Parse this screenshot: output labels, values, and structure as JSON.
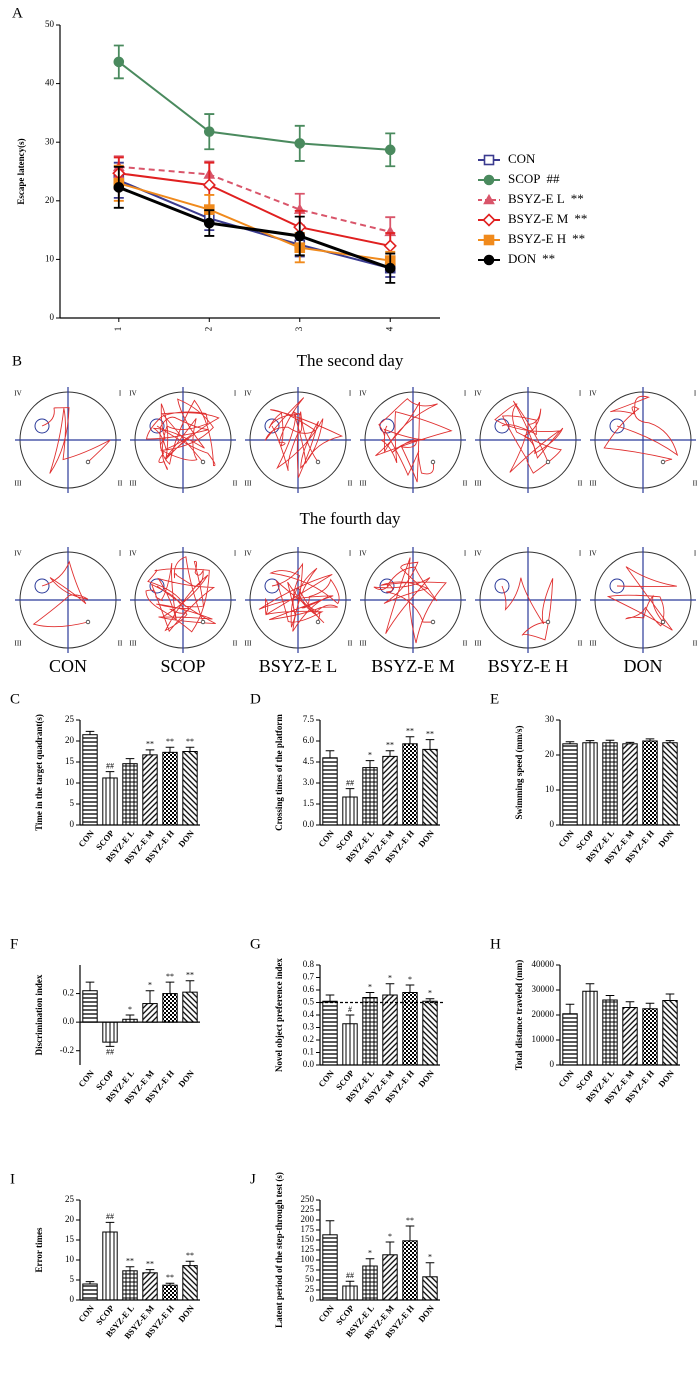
{
  "chart_data": [
    {
      "type": "line",
      "panel": "A",
      "y_label": "Escape latency(s)",
      "x": [
        1,
        2,
        3,
        4
      ],
      "xlim": [
        0.35,
        4.55
      ],
      "xticks": [
        1,
        2,
        3,
        4
      ],
      "ylim": [
        0,
        50
      ],
      "yticks": [
        0,
        10,
        20,
        30,
        40,
        50
      ],
      "legend": "right",
      "series": [
        {
          "name": "CON",
          "sig": null,
          "color": "#3b3b8f",
          "marker": "square-open",
          "dashed": false,
          "values": [
            23.5,
            17.0,
            12.5,
            8.5
          ],
          "errors": [
            3.0,
            2.0,
            2.0,
            1.5
          ]
        },
        {
          "name": "SCOP",
          "sig": "##",
          "color": "#4a8a5e",
          "marker": "circle",
          "dashed": false,
          "values": [
            43.7,
            31.8,
            29.8,
            28.7
          ],
          "errors": [
            2.8,
            3.0,
            3.0,
            2.8
          ]
        },
        {
          "name": "BSYZ-E L",
          "sig": "**",
          "color": "#d9556a",
          "marker": "triangle",
          "dashed": true,
          "values": [
            25.8,
            24.5,
            18.5,
            14.7
          ],
          "errors": [
            1.8,
            2.2,
            2.7,
            2.5
          ]
        },
        {
          "name": "BSYZ-E M",
          "sig": "**",
          "color": "#e02020",
          "marker": "diamond-open",
          "dashed": false,
          "values": [
            24.7,
            22.7,
            15.5,
            12.3
          ],
          "errors": [
            2.7,
            3.8,
            2.8,
            2.2
          ]
        },
        {
          "name": "BSYZ-E H",
          "sig": "**",
          "color": "#f08a1c",
          "marker": "square",
          "dashed": false,
          "values": [
            23.0,
            18.5,
            12.0,
            9.8
          ],
          "errors": [
            3.0,
            2.5,
            2.5,
            1.5
          ]
        },
        {
          "name": "DON",
          "sig": "**",
          "color": "#000000",
          "marker": "circle",
          "dashed": false,
          "values": [
            22.3,
            16.2,
            14.0,
            8.5
          ],
          "errors": [
            3.5,
            2.2,
            3.3,
            2.5
          ]
        }
      ]
    },
    {
      "type": "bar",
      "panel": "C",
      "y_label": "Time in the target quadrant(s)",
      "categories": [
        "CON",
        "SCOP",
        "BSYZ-E L",
        "BSYZ-E M",
        "BSYZ-E H",
        "DON"
      ],
      "values": [
        21.5,
        11.2,
        14.6,
        16.7,
        17.3,
        17.5
      ],
      "errors": [
        0.8,
        1.5,
        1.2,
        1.2,
        1.2,
        1.0
      ],
      "annotations": [
        null,
        "##",
        null,
        "**",
        "**",
        "**"
      ],
      "color": "#000000",
      "ylim": [
        0,
        25
      ],
      "yticks": [
        0,
        5,
        10,
        15,
        20,
        25
      ]
    },
    {
      "type": "bar",
      "panel": "D",
      "y_label": "Crossing times of the platform",
      "categories": [
        "CON",
        "SCOP",
        "BSYZ-E L",
        "BSYZ-E M",
        "BSYZ-E H",
        "DON"
      ],
      "values": [
        4.8,
        2.0,
        4.1,
        4.9,
        5.8,
        5.4
      ],
      "errors": [
        0.5,
        0.6,
        0.5,
        0.4,
        0.5,
        0.7
      ],
      "annotations": [
        null,
        "##",
        "*",
        "**",
        "**",
        "**"
      ],
      "color": "#000000",
      "ylim": [
        0,
        7.5
      ],
      "yticks": [
        {
          "value": 0,
          "label": "0.0"
        },
        1.5,
        {
          "value": 3,
          "label": "3.0"
        },
        4.5,
        {
          "value": 6,
          "label": "6.0"
        },
        7.5
      ]
    },
    {
      "type": "bar",
      "panel": "E",
      "y_label": "Swimming speed (mm/s)",
      "categories": [
        "CON",
        "SCOP",
        "BSYZ-E L",
        "BSYZ-E M",
        "BSYZ-E H",
        "DON"
      ],
      "values": [
        23.2,
        23.5,
        23.5,
        23.2,
        24.0,
        23.5
      ],
      "errors": [
        0.6,
        0.6,
        0.7,
        0.4,
        0.6,
        0.6
      ],
      "annotations": [
        null,
        null,
        null,
        null,
        null,
        null
      ],
      "color": "#000000",
      "ylim": [
        0,
        30
      ],
      "yticks": [
        0,
        10,
        20,
        30
      ]
    },
    {
      "type": "bar",
      "panel": "F",
      "y_label": "Discrimination index",
      "categories": [
        "CON",
        "SCOP",
        "BSYZ-E L",
        "BSYZ-E M",
        "BSYZ-E H",
        "DON"
      ],
      "values": [
        0.22,
        -0.14,
        0.02,
        0.13,
        0.2,
        0.21
      ],
      "errors": [
        0.06,
        0.03,
        0.03,
        0.09,
        0.08,
        0.08
      ],
      "annotations": [
        null,
        "##",
        "*",
        "*",
        "**",
        "**"
      ],
      "color": "#000000",
      "ylim": [
        -0.3,
        0.4
      ],
      "yticks": [
        -0.2,
        {
          "value": 0,
          "label": "0.0"
        },
        0.2
      ]
    },
    {
      "type": "bar",
      "panel": "G",
      "y_label": "Novel object preference index",
      "categories": [
        "CON",
        "SCOP",
        "BSYZ-E L",
        "BSYZ-E M",
        "BSYZ-E H",
        "DON"
      ],
      "values": [
        0.51,
        0.33,
        0.54,
        0.56,
        0.58,
        0.51
      ],
      "errors": [
        0.05,
        0.07,
        0.04,
        0.09,
        0.06,
        0.02
      ],
      "annotations": [
        null,
        "#",
        "*",
        "*",
        "*",
        "*"
      ],
      "color": "#000000",
      "ref_line": 0.5,
      "ylim": [
        0,
        0.8
      ],
      "yticks": [
        {
          "value": 0,
          "label": "0.0"
        },
        0.1,
        0.2,
        0.3,
        0.4,
        0.5,
        0.6,
        0.7,
        0.8
      ]
    },
    {
      "type": "bar",
      "panel": "H",
      "y_label": "Total distance traveled (mm)",
      "categories": [
        "CON",
        "SCOP",
        "BSYZ-E L",
        "BSYZ-E M",
        "BSYZ-E H",
        "DON"
      ],
      "values": [
        20500,
        29500,
        26000,
        23000,
        22500,
        25800
      ],
      "errors": [
        3800,
        3000,
        1800,
        2300,
        2200,
        2600
      ],
      "annotations": [
        null,
        null,
        null,
        null,
        null,
        null
      ],
      "color": "#000000",
      "ylim": [
        0,
        40000
      ],
      "yticks": [
        0,
        10000,
        20000,
        30000,
        40000
      ]
    },
    {
      "type": "bar",
      "panel": "I",
      "y_label": "Error times",
      "categories": [
        "CON",
        "SCOP",
        "BSYZ-E L",
        "BSYZ-E M",
        "BSYZ-E H",
        "DON"
      ],
      "values": [
        4.0,
        17.0,
        7.3,
        6.8,
        3.7,
        8.6
      ],
      "errors": [
        0.6,
        2.4,
        1.0,
        0.8,
        0.5,
        1.1
      ],
      "annotations": [
        null,
        "##",
        "**",
        "**",
        "**",
        "**"
      ],
      "color": "#000000",
      "ylim": [
        0,
        25
      ],
      "yticks": [
        0,
        5,
        10,
        15,
        20,
        25
      ]
    },
    {
      "type": "bar",
      "panel": "J",
      "y_label": "Latent period of the step-through test (s)",
      "categories": [
        "CON",
        "SCOP",
        "BSYZ-E L",
        "BSYZ-E M",
        "BSYZ-E H",
        "DON"
      ],
      "values": [
        163,
        35,
        85,
        113,
        148,
        58
      ],
      "errors": [
        35,
        12,
        18,
        32,
        37,
        35
      ],
      "annotations": [
        null,
        "##",
        "*",
        "*",
        "**",
        "*"
      ],
      "color": "#000000",
      "ylim": [
        0,
        250
      ],
      "yticks": [
        0,
        25,
        50,
        75,
        100,
        125,
        150,
        175,
        200,
        225,
        250
      ]
    }
  ],
  "panel_b": {
    "panel": "B",
    "rows": [
      "The second day",
      "The fourth day"
    ],
    "groups": [
      "CON",
      "SCOP",
      "BSYZ-E L",
      "BSYZ-E M",
      "BSYZ-E H",
      "DON"
    ],
    "quadrants": [
      "IV",
      "I",
      "III",
      "II"
    ]
  }
}
